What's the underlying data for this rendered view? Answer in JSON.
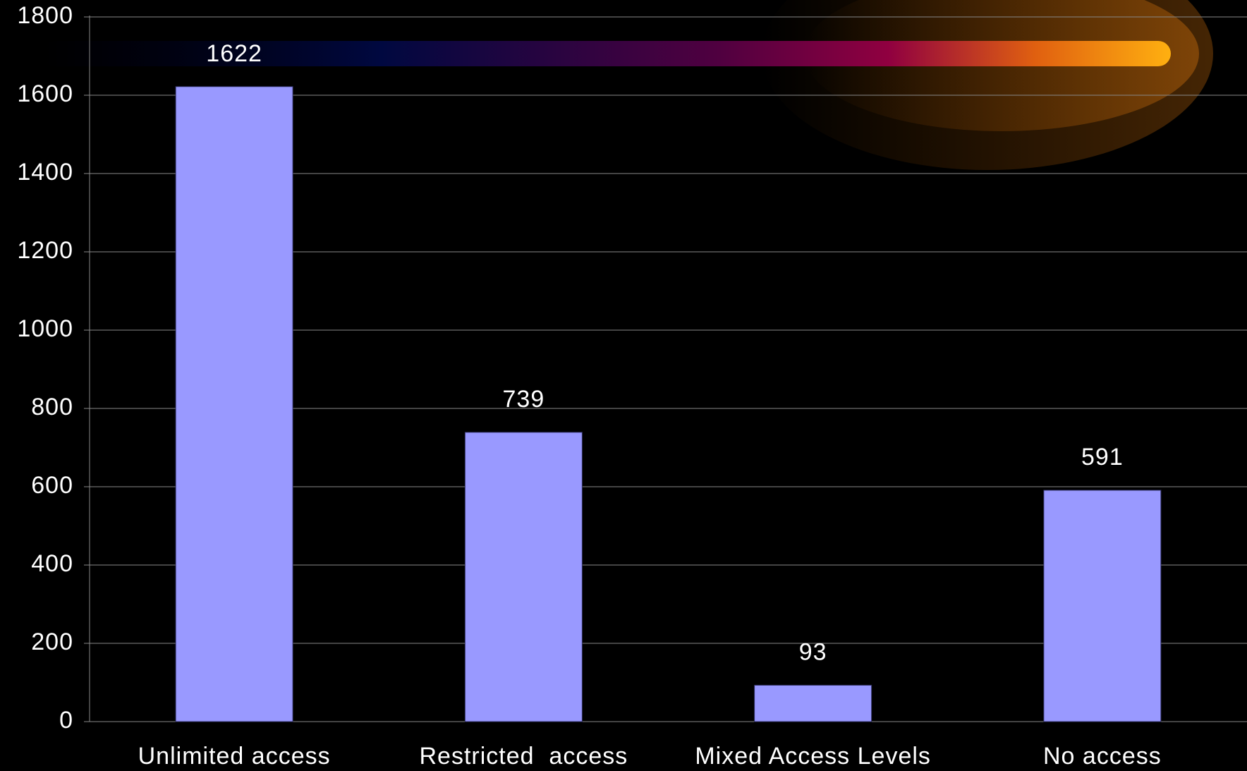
{
  "chart_data": {
    "type": "bar",
    "categories": [
      "Unlimited access",
      "Restricted  access",
      "Mixed Access Levels",
      "No access"
    ],
    "values": [
      1622,
      739,
      93,
      591
    ],
    "color": "#9999ff",
    "ylim": [
      0,
      1800
    ],
    "yticks": [
      0,
      200,
      400,
      600,
      800,
      1000,
      1200,
      1400,
      1600,
      1800
    ],
    "grid": true
  }
}
